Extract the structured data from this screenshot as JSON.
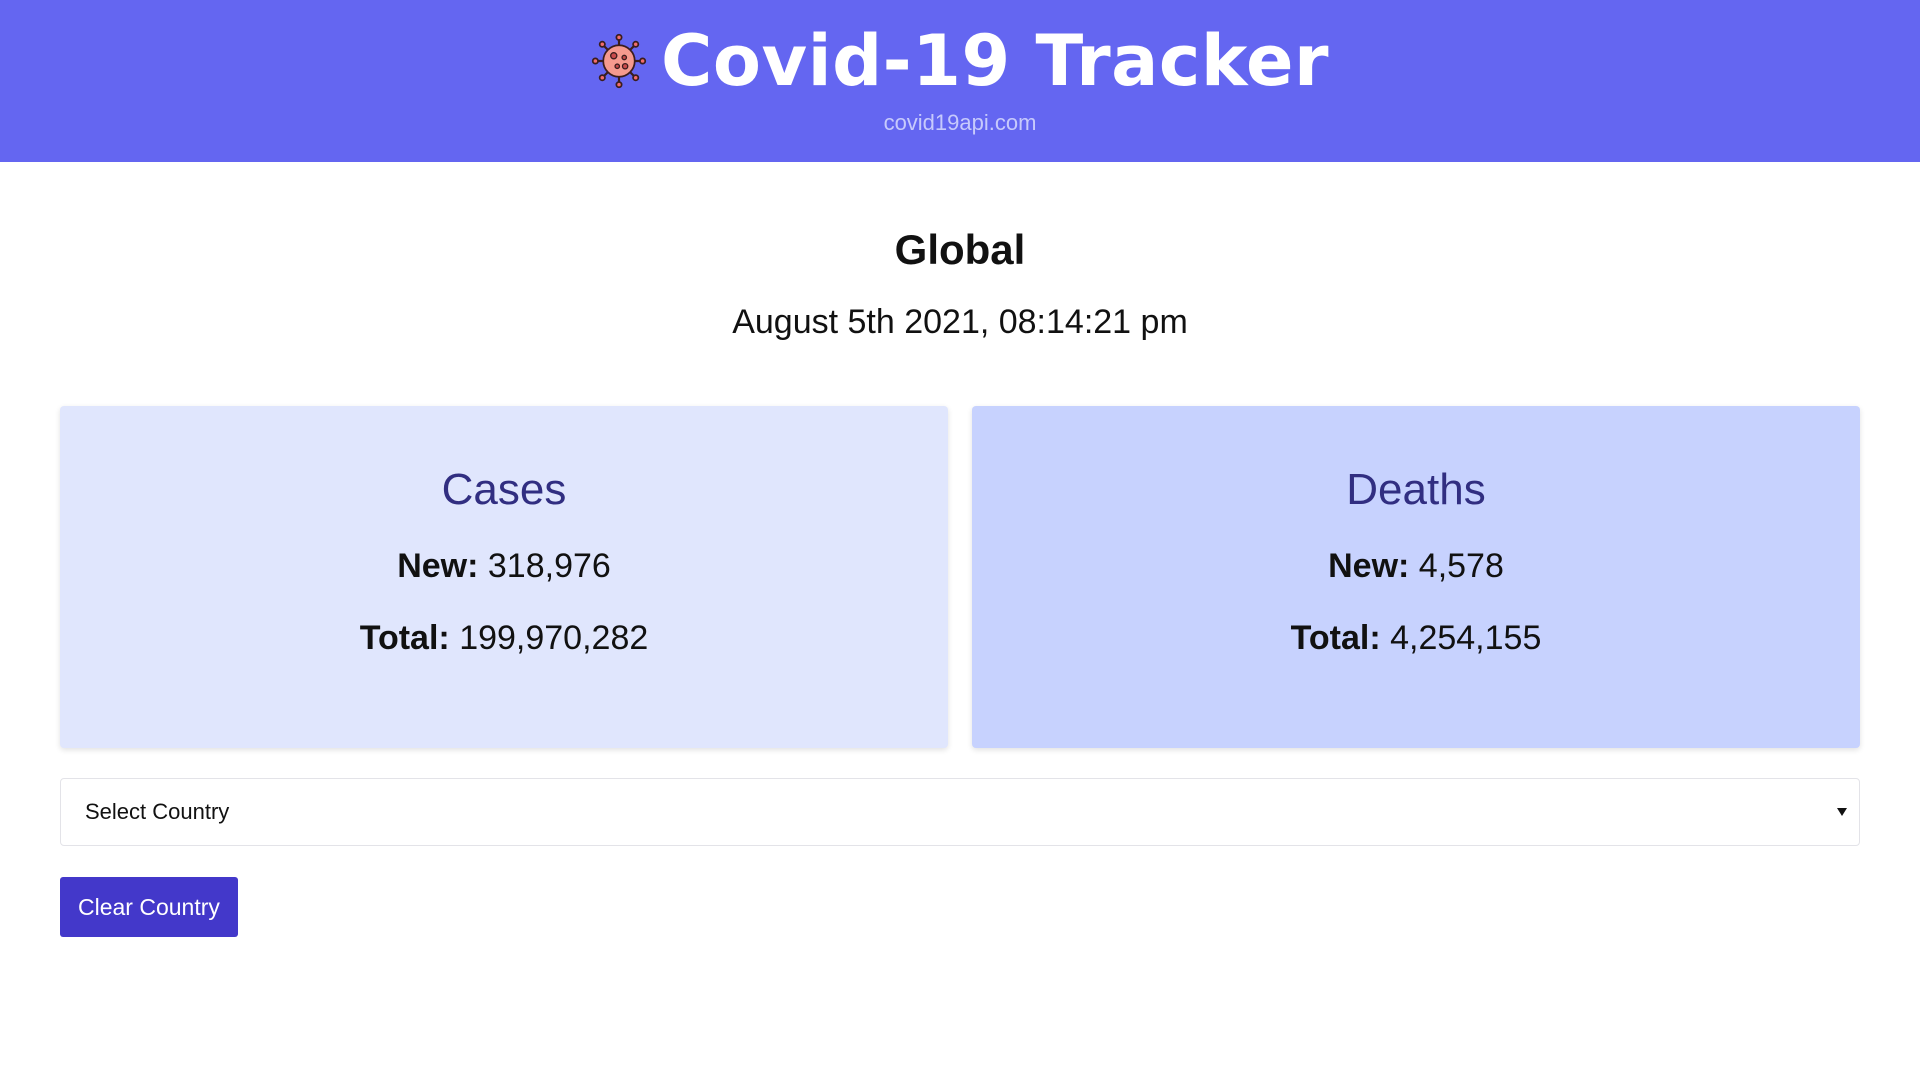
{
  "header": {
    "title": "Covid-19 Tracker",
    "subtitle": "covid19api.com",
    "icon": "virus-icon",
    "background_color": "#6466f1"
  },
  "summary": {
    "region": "Global",
    "date": "August 5th 2021, 08:14:21 pm"
  },
  "cards": {
    "cases": {
      "title": "Cases",
      "new_label": "New:",
      "new_value": "318,976",
      "total_label": "Total:",
      "total_value": "199,970,282",
      "background_color": "#e0e6fd"
    },
    "deaths": {
      "title": "Deaths",
      "new_label": "New:",
      "new_value": "4,578",
      "total_label": "Total:",
      "total_value": "4,254,155",
      "background_color": "#c7d2fe"
    }
  },
  "country_select": {
    "selected": "Select Country",
    "icon": "chevron-down-icon"
  },
  "clear_button": {
    "label": "Clear Country",
    "background_color": "#4338ca"
  }
}
